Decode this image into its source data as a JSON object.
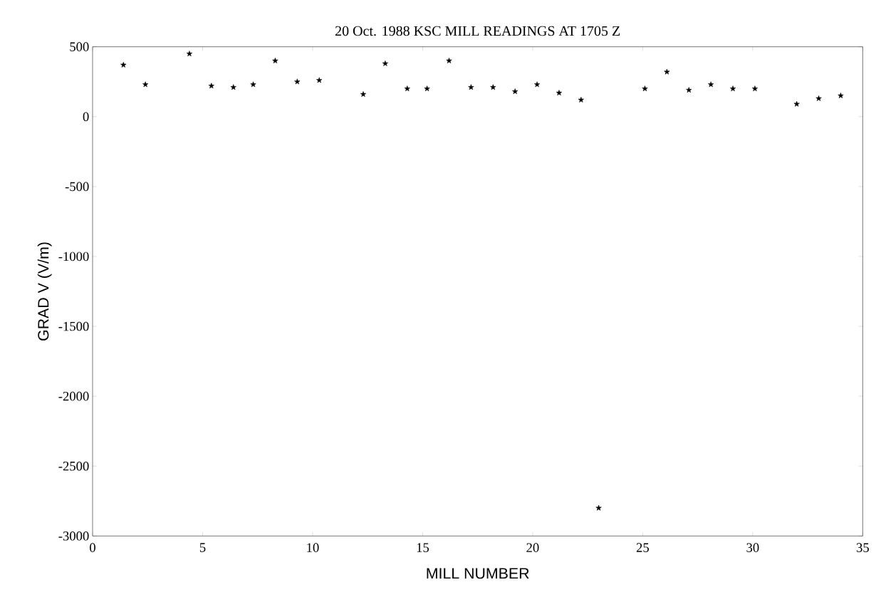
{
  "chart_data": {
    "type": "scatter",
    "title": "20 Oct. 1988 KSC MILL READINGS AT 1705 Z",
    "xlabel": "MILL NUMBER",
    "ylabel": "GRAD V  (V/m)",
    "x": [
      1.4,
      2.4,
      4.4,
      5.4,
      6.4,
      7.3,
      8.3,
      9.3,
      10.3,
      12.3,
      13.3,
      14.3,
      15.2,
      16.2,
      17.2,
      18.2,
      19.2,
      20.2,
      21.2,
      22.2,
      23.0,
      25.1,
      26.1,
      27.1,
      28.1,
      29.1,
      30.1,
      32.0,
      33.0,
      34.0
    ],
    "values": [
      370,
      230,
      450,
      220,
      210,
      230,
      400,
      250,
      260,
      160,
      380,
      200,
      200,
      400,
      210,
      210,
      180,
      230,
      170,
      120,
      -2800,
      200,
      320,
      190,
      230,
      200,
      200,
      90,
      130,
      150
    ],
    "color": "#000000",
    "marker": "star",
    "xlim": [
      0,
      35
    ],
    "ylim": [
      -3000,
      500
    ],
    "xticks": [
      0,
      5,
      10,
      15,
      20,
      25,
      30,
      35
    ],
    "yticks": [
      -3000,
      -2500,
      -2000,
      -1500,
      -1000,
      -500,
      0,
      500
    ],
    "grid": false
  }
}
